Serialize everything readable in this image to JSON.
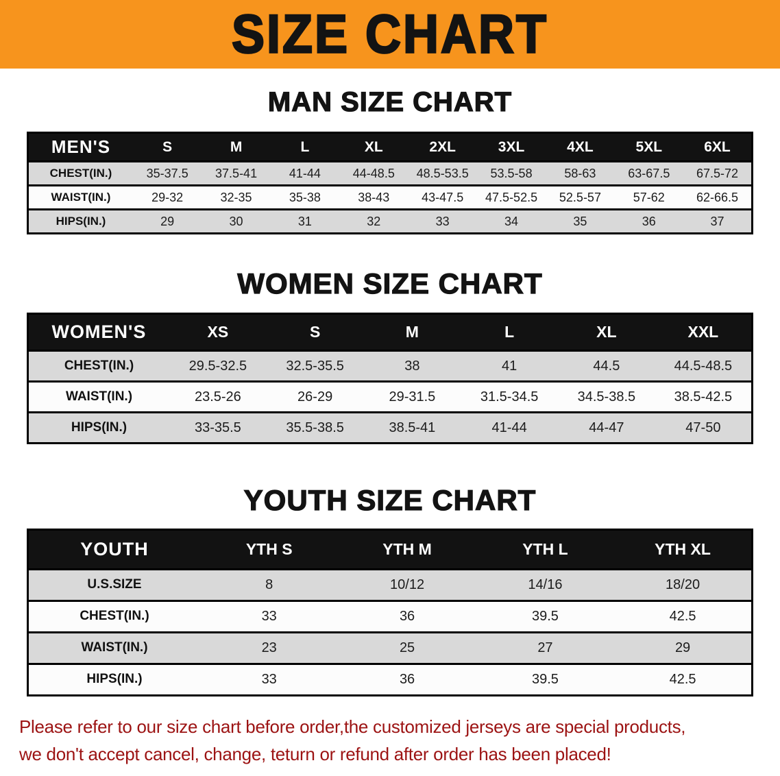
{
  "banner": {
    "title": "SIZE CHART"
  },
  "sections": [
    {
      "heading": "MAN SIZE CHART",
      "table": {
        "header": [
          "MEN'S",
          "S",
          "M",
          "L",
          "XL",
          "2XL",
          "3XL",
          "4XL",
          "5XL",
          "6XL"
        ],
        "rows": [
          [
            "CHEST(IN.)",
            "35-37.5",
            "37.5-41",
            "41-44",
            "44-48.5",
            "48.5-53.5",
            "53.5-58",
            "58-63",
            "63-67.5",
            "67.5-72"
          ],
          [
            "WAIST(IN.)",
            "29-32",
            "32-35",
            "35-38",
            "38-43",
            "43-47.5",
            "47.5-52.5",
            "52.5-57",
            "57-62",
            "62-66.5"
          ],
          [
            "HIPS(IN.)",
            "29",
            "30",
            "31",
            "32",
            "33",
            "34",
            "35",
            "36",
            "37"
          ]
        ]
      }
    },
    {
      "heading": "WOMEN SIZE CHART",
      "table": {
        "header": [
          "WOMEN'S",
          "XS",
          "S",
          "M",
          "L",
          "XL",
          "XXL"
        ],
        "rows": [
          [
            "CHEST(IN.)",
            "29.5-32.5",
            "32.5-35.5",
            "38",
            "41",
            "44.5",
            "44.5-48.5"
          ],
          [
            "WAIST(IN.)",
            "23.5-26",
            "26-29",
            "29-31.5",
            "31.5-34.5",
            "34.5-38.5",
            "38.5-42.5"
          ],
          [
            "HIPS(IN.)",
            "33-35.5",
            "35.5-38.5",
            "38.5-41",
            "41-44",
            "44-47",
            "47-50"
          ]
        ]
      }
    },
    {
      "heading": "YOUTH SIZE CHART",
      "table": {
        "header": [
          "YOUTH",
          "YTH S",
          "YTH M",
          "YTH L",
          "YTH XL"
        ],
        "rows": [
          [
            "U.S.SIZE",
            "8",
            "10/12",
            "14/16",
            "18/20"
          ],
          [
            "CHEST(IN.)",
            "33",
            "36",
            "39.5",
            "42.5"
          ],
          [
            "WAIST(IN.)",
            "23",
            "25",
            "27",
            "29"
          ],
          [
            "HIPS(IN.)",
            "33",
            "36",
            "39.5",
            "42.5"
          ]
        ]
      }
    }
  ],
  "disclaimer": {
    "line1": "Please refer to our size chart before order,the customized jerseys are special products,",
    "line2": "we don't accept cancel, change, teturn or refund after order has been placed!"
  },
  "colors": {
    "banner_bg": "#F7941D",
    "table_header_bg": "#121212",
    "row_alt_bg": "#D9D9D9",
    "disclaimer_text": "#9C1313"
  }
}
